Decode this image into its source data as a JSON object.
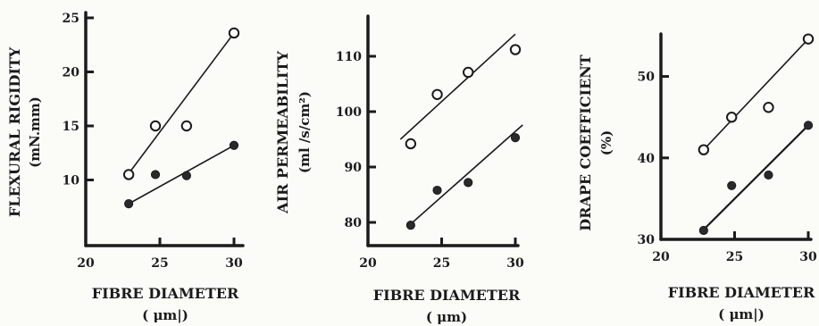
{
  "chart_data": [
    {
      "type": "scatter",
      "title": "",
      "xlabel": "FIBRE DIAMETER",
      "xunit": "( μm|)",
      "ylabel": "FLEXURAL RIGIDITY",
      "yunit": "(mN.mm)",
      "xlim": [
        20,
        30
      ],
      "ylim": [
        5,
        25
      ],
      "xticks": [
        "20",
        "25",
        "30"
      ],
      "yticks": [
        "10",
        "15",
        "20",
        "25"
      ],
      "series": [
        {
          "marker": "open",
          "x": [
            22.9,
            24.7,
            26.8,
            30.0
          ],
          "y": [
            10.5,
            15.0,
            15.0,
            23.6
          ],
          "fit": [
            [
              22.9,
              10.6
            ],
            [
              30.0,
              23.6
            ]
          ]
        },
        {
          "marker": "filled",
          "x": [
            22.9,
            24.7,
            26.8,
            30.0
          ],
          "y": [
            7.8,
            10.5,
            10.4,
            13.2
          ],
          "fit": [
            [
              22.9,
              7.8
            ],
            [
              30.0,
              13.2
            ]
          ]
        }
      ]
    },
    {
      "type": "scatter",
      "title": "",
      "xlabel": "FIBRE DIAMETER",
      "xunit": "( μm)",
      "ylabel": "AIR PERMEABILITY",
      "yunit": "(ml /s/cm²)",
      "xlim": [
        20,
        30
      ],
      "ylim": [
        75,
        110
      ],
      "xticks": [
        "20",
        "25",
        "30"
      ],
      "yticks": [
        "80",
        "90",
        "100",
        "110"
      ],
      "series": [
        {
          "marker": "open",
          "x": [
            22.9,
            24.7,
            26.8,
            30.0
          ],
          "y": [
            94.2,
            103.1,
            107.1,
            111.2
          ],
          "fit": [
            [
              22.2,
              95.0
            ],
            [
              30.0,
              114.0
            ]
          ]
        },
        {
          "marker": "filled",
          "x": [
            22.9,
            24.7,
            26.8,
            30.0
          ],
          "y": [
            79.5,
            85.8,
            87.2,
            95.3
          ],
          "fit": [
            [
              22.9,
              79.7
            ],
            [
              30.5,
              97.6
            ]
          ]
        }
      ]
    },
    {
      "type": "scatter",
      "title": "",
      "xlabel": "FIBRE DIAMETER",
      "xunit": "( μm|)",
      "ylabel": "DRAPE COEFFICIENT",
      "yunit": "(%)",
      "xlim": [
        20,
        30
      ],
      "ylim": [
        30,
        55
      ],
      "xticks": [
        "20",
        "25",
        "30"
      ],
      "yticks": [
        "30",
        "40",
        "50"
      ],
      "series": [
        {
          "marker": "open",
          "x": [
            22.9,
            24.8,
            27.3,
            30.0
          ],
          "y": [
            41.0,
            45.0,
            46.2,
            54.6
          ],
          "fit": [
            [
              22.9,
              41.0
            ],
            [
              30.0,
              54.6
            ]
          ]
        },
        {
          "marker": "filled",
          "x": [
            22.9,
            24.8,
            27.3,
            30.0
          ],
          "y": [
            31.1,
            36.6,
            37.9,
            44.0
          ],
          "fit": [
            [
              22.9,
              31.2
            ],
            [
              30.0,
              44.0
            ]
          ]
        }
      ]
    }
  ]
}
